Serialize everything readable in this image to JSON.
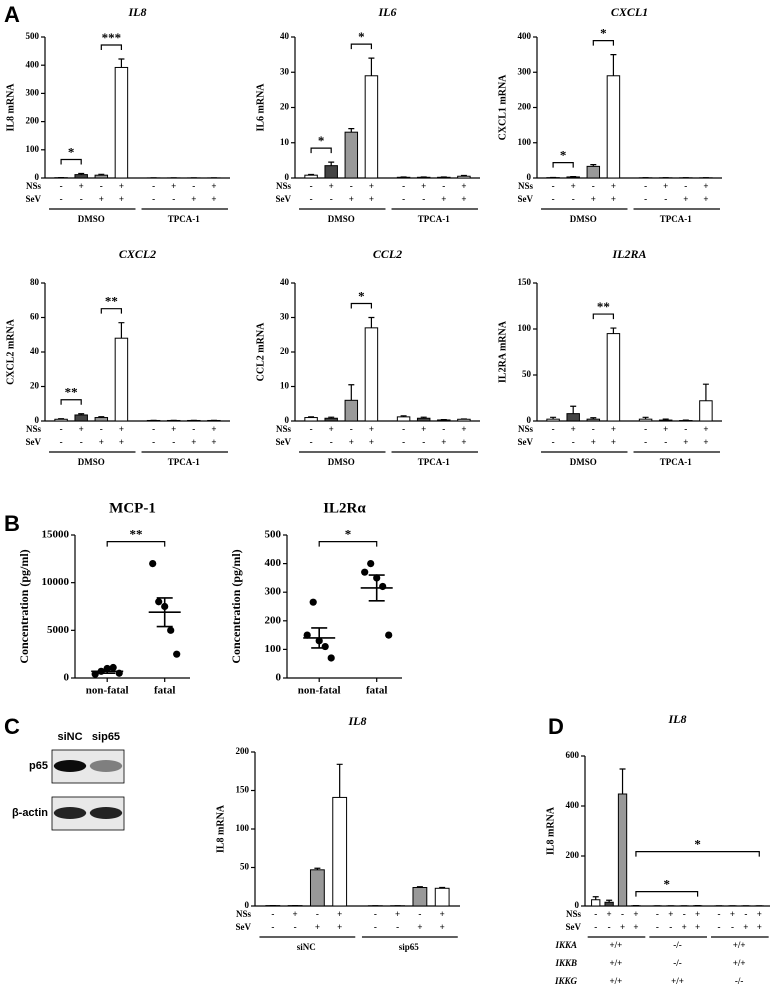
{
  "chart_data": [
    {
      "type": "bar",
      "panel": "A",
      "title": "IL8",
      "ylabel": "IL8 mRNA",
      "ylim": [
        0,
        500
      ],
      "yticks": [
        0,
        100,
        200,
        300,
        400,
        500
      ],
      "values": [
        1,
        12,
        10,
        392,
        0.3,
        0.3,
        0.3,
        0.3
      ],
      "errors": [
        0.5,
        4,
        3,
        30,
        0.2,
        0.2,
        0.2,
        0.2
      ],
      "bar_colors": [
        "#ffffff",
        "#444444",
        "#999999",
        "#ffffff"
      ],
      "conditions": [
        {
          "name": "NSs",
          "signs": [
            "-",
            "+",
            "-",
            "+",
            "-",
            "+",
            "-",
            "+"
          ]
        },
        {
          "name": "SeV",
          "signs": [
            "-",
            "-",
            "+",
            "+",
            "-",
            "-",
            "+",
            "+"
          ]
        }
      ],
      "groups": [
        "DMSO",
        "TPCA-1"
      ],
      "brackets": [
        {
          "from": 0,
          "to": 1,
          "label": "*"
        },
        {
          "from": 2,
          "to": 3,
          "label": "***"
        }
      ]
    },
    {
      "type": "bar",
      "title": "IL6",
      "ylabel": "IL6 mRNA",
      "ylim": [
        0,
        40
      ],
      "yticks": [
        0,
        10,
        20,
        30,
        40
      ],
      "values": [
        0.8,
        3.5,
        13,
        29,
        0.2,
        0.2,
        0.2,
        0.5
      ],
      "errors": [
        0.2,
        1,
        1,
        5,
        0.1,
        0.1,
        0.1,
        0.2
      ],
      "bar_colors": [
        "#ffffff",
        "#444444",
        "#999999",
        "#ffffff"
      ],
      "conditions": [
        {
          "name": "NSs",
          "signs": [
            "-",
            "+",
            "-",
            "+",
            "-",
            "+",
            "-",
            "+"
          ]
        },
        {
          "name": "SeV",
          "signs": [
            "-",
            "-",
            "+",
            "+",
            "-",
            "-",
            "+",
            "+"
          ]
        }
      ],
      "groups": [
        "DMSO",
        "TPCA-1"
      ],
      "brackets": [
        {
          "from": 0,
          "to": 1,
          "label": "*"
        },
        {
          "from": 2,
          "to": 3,
          "label": "*"
        }
      ]
    },
    {
      "type": "bar",
      "title": "CXCL1",
      "ylabel": "CXCL1 mRNA",
      "ylim": [
        0,
        400
      ],
      "yticks": [
        0,
        100,
        200,
        300,
        400
      ],
      "values": [
        1,
        3,
        33,
        290,
        0.5,
        0.5,
        0.5,
        0.5
      ],
      "errors": [
        0.5,
        1,
        5,
        60,
        0.2,
        0.2,
        0.2,
        0.2
      ],
      "bar_colors": [
        "#ffffff",
        "#444444",
        "#999999",
        "#ffffff"
      ],
      "conditions": [
        {
          "name": "NSs",
          "signs": [
            "-",
            "+",
            "-",
            "+",
            "-",
            "+",
            "-",
            "+"
          ]
        },
        {
          "name": "SeV",
          "signs": [
            "-",
            "-",
            "+",
            "+",
            "-",
            "-",
            "+",
            "+"
          ]
        }
      ],
      "groups": [
        "DMSO",
        "TPCA-1"
      ],
      "brackets": [
        {
          "from": 0,
          "to": 1,
          "label": "*"
        },
        {
          "from": 2,
          "to": 3,
          "label": "*"
        }
      ]
    },
    {
      "type": "bar",
      "title": "CXCL2",
      "ylabel": "CXCL2 mRNA",
      "ylim": [
        0,
        80
      ],
      "yticks": [
        0,
        20,
        40,
        60,
        80
      ],
      "values": [
        1,
        3.5,
        2,
        48,
        0.3,
        0.3,
        0.3,
        0.3
      ],
      "errors": [
        0.3,
        0.7,
        0.5,
        9,
        0.1,
        0.1,
        0.1,
        0.1
      ],
      "bar_colors": [
        "#ffffff",
        "#444444",
        "#999999",
        "#ffffff"
      ],
      "conditions": [
        {
          "name": "NSs",
          "signs": [
            "-",
            "+",
            "-",
            "+",
            "-",
            "+",
            "-",
            "+"
          ]
        },
        {
          "name": "SeV",
          "signs": [
            "-",
            "-",
            "+",
            "+",
            "-",
            "-",
            "+",
            "+"
          ]
        }
      ],
      "groups": [
        "DMSO",
        "TPCA-1"
      ],
      "brackets": [
        {
          "from": 0,
          "to": 1,
          "label": "**"
        },
        {
          "from": 2,
          "to": 3,
          "label": "**"
        }
      ]
    },
    {
      "type": "bar",
      "title": "CCL2",
      "ylabel": "CCL2 mRNA",
      "ylim": [
        0,
        40
      ],
      "yticks": [
        0,
        10,
        20,
        30,
        40
      ],
      "values": [
        1,
        0.8,
        6,
        27,
        1.2,
        0.8,
        0.3,
        0.5
      ],
      "errors": [
        0.2,
        0.3,
        4.5,
        3,
        0.3,
        0.3,
        0.1,
        0.1
      ],
      "bar_colors": [
        "#ffffff",
        "#444444",
        "#999999",
        "#ffffff"
      ],
      "conditions": [
        {
          "name": "NSs",
          "signs": [
            "-",
            "+",
            "-",
            "+",
            "-",
            "+",
            "-",
            "+"
          ]
        },
        {
          "name": "SeV",
          "signs": [
            "-",
            "-",
            "+",
            "+",
            "-",
            "-",
            "+",
            "+"
          ]
        }
      ],
      "groups": [
        "DMSO",
        "TPCA-1"
      ],
      "brackets": [
        {
          "from": 2,
          "to": 3,
          "label": "*"
        }
      ]
    },
    {
      "type": "bar",
      "title": "IL2RA",
      "ylabel": "IL2RA mRNA",
      "ylim": [
        0,
        150
      ],
      "yticks": [
        0,
        50,
        100,
        150
      ],
      "values": [
        2,
        8,
        2,
        95,
        2,
        1,
        0.5,
        22
      ],
      "errors": [
        2,
        8,
        1.5,
        6,
        2,
        1,
        0.5,
        18
      ],
      "bar_colors": [
        "#ffffff",
        "#444444",
        "#999999",
        "#ffffff"
      ],
      "conditions": [
        {
          "name": "NSs",
          "signs": [
            "-",
            "+",
            "-",
            "+",
            "-",
            "+",
            "-",
            "+"
          ]
        },
        {
          "name": "SeV",
          "signs": [
            "-",
            "-",
            "+",
            "+",
            "-",
            "-",
            "+",
            "+"
          ]
        }
      ],
      "groups": [
        "DMSO",
        "TPCA-1"
      ],
      "brackets": [
        {
          "from": 2,
          "to": 3,
          "label": "**"
        }
      ]
    },
    {
      "type": "scatter",
      "panel": "B",
      "title": "MCP-1",
      "ylabel": "Concentration (pg/ml)",
      "ylim": [
        0,
        15000
      ],
      "yticks": [
        0,
        5000,
        10000,
        15000
      ],
      "categories": [
        "non-fatal",
        "fatal"
      ],
      "points": [
        [
          400,
          700,
          1000,
          1100,
          500
        ],
        [
          12000,
          8000,
          7500,
          5000,
          2500
        ]
      ],
      "means": [
        700,
        6900
      ],
      "sems": [
        200,
        1500
      ],
      "brackets": [
        {
          "from": 0,
          "to": 1,
          "label": "**"
        }
      ]
    },
    {
      "type": "scatter",
      "title": "IL2Rα",
      "ylabel": "Concentration (pg/ml)",
      "ylim": [
        0,
        500
      ],
      "yticks": [
        0,
        100,
        200,
        300,
        400,
        500
      ],
      "categories": [
        "non-fatal",
        "fatal"
      ],
      "points": [
        [
          150,
          265,
          130,
          110,
          70
        ],
        [
          370,
          400,
          350,
          320,
          150
        ]
      ],
      "means": [
        140,
        315
      ],
      "sems": [
        35,
        45
      ],
      "brackets": [
        {
          "from": 0,
          "to": 1,
          "label": "*"
        }
      ]
    },
    {
      "type": "blot",
      "panel": "C",
      "lanes": [
        "siNC",
        "sip65"
      ],
      "proteins": [
        "p65",
        "β-actin"
      ]
    },
    {
      "type": "bar",
      "title": "IL8",
      "ylabel": "IL8 mRNA",
      "ylim": [
        0,
        200
      ],
      "yticks": [
        0,
        50,
        100,
        150,
        200
      ],
      "values": [
        0.5,
        0.5,
        47,
        141,
        0.3,
        0.3,
        24,
        23
      ],
      "errors": [
        0,
        0,
        2,
        43,
        0,
        0,
        1,
        1
      ],
      "bar_colors": [
        "#ffffff",
        "#444444",
        "#999999",
        "#ffffff"
      ],
      "conditions": [
        {
          "name": "NSs",
          "signs": [
            "-",
            "+",
            "-",
            "+",
            "-",
            "+",
            "-",
            "+"
          ]
        },
        {
          "name": "SeV",
          "signs": [
            "-",
            "-",
            "+",
            "+",
            "-",
            "-",
            "+",
            "+"
          ]
        }
      ],
      "groups": [
        "siNC",
        "sip65"
      ],
      "brackets": []
    },
    {
      "type": "bar",
      "panel": "D",
      "title": "IL8",
      "ylabel": "IL8 mRNA",
      "ylim": [
        0,
        600
      ],
      "yticks": [
        0,
        200,
        400,
        600
      ],
      "values": [
        25,
        15,
        448,
        1,
        0.5,
        0.5,
        0.5,
        1,
        0.5,
        0.5,
        0.5,
        0.5
      ],
      "errors": [
        12,
        8,
        100,
        0.5,
        0.2,
        0.2,
        0.2,
        0.5,
        0.2,
        0.2,
        0.2,
        0.2
      ],
      "bar_colors": [
        "#ffffff",
        "#444444",
        "#999999",
        "#ffffff"
      ],
      "conditions": [
        {
          "name": "NSs",
          "signs": [
            "-",
            "+",
            "-",
            "+",
            "-",
            "+",
            "-",
            "+",
            "-",
            "+",
            "-",
            "+"
          ]
        },
        {
          "name": "SeV",
          "signs": [
            "-",
            "-",
            "+",
            "+",
            "-",
            "-",
            "+",
            "+",
            "-",
            "-",
            "+",
            "+"
          ]
        }
      ],
      "genotypes": [
        {
          "name": "IKKA",
          "labels": [
            "+/+",
            "-/-",
            "+/+"
          ]
        },
        {
          "name": "IKKB",
          "labels": [
            "+/+",
            "-/-",
            "+/+"
          ]
        },
        {
          "name": "IKKG",
          "labels": [
            "+/+",
            "+/+",
            "-/-"
          ]
        }
      ],
      "brackets": [
        {
          "from": 3,
          "to": 7,
          "label": "*"
        },
        {
          "from": 3,
          "to": 11,
          "label": "*"
        }
      ]
    }
  ]
}
